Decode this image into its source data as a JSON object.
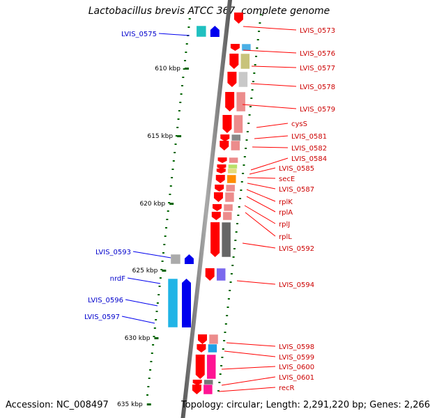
{
  "title": "Lactobacillus brevis ATCC 367, complete genome",
  "accession": "Accession: NC_008497",
  "topology": "Topology: circular; Length: 2,291,220 bp; Genes: 2,266",
  "colors": {
    "backbone": "#888888",
    "forward_gene": "#ff0000",
    "reverse_gene": "#0000ee",
    "forward_label": "#cc0000",
    "reverse_label": "#0000cc",
    "tick": "#006400"
  },
  "scale": {
    "unit": "kbp",
    "ticks": [
      "610 kbp",
      "615 kbp",
      "620 kbp",
      "625 kbp",
      "630 kbp",
      "635 kbp"
    ]
  },
  "genes_right": [
    "LVIS_0573",
    "LVIS_0576",
    "LVIS_0577",
    "LVIS_0578",
    "LVIS_0579",
    "cysS",
    "LVIS_0581",
    "LVIS_0582",
    "LVIS_0584",
    "LVIS_0585",
    "secE",
    "LVIS_0587",
    "rplK",
    "rplA",
    "rplJ",
    "rplL",
    "LVIS_0592",
    "LVIS_0594",
    "LVIS_0598",
    "LVIS_0599",
    "LVIS_0600",
    "LVIS_0601",
    "recR"
  ],
  "genes_left": [
    "LVIS_0575",
    "LVIS_0593",
    "nrdF",
    "LVIS_0596",
    "LVIS_0597"
  ]
}
